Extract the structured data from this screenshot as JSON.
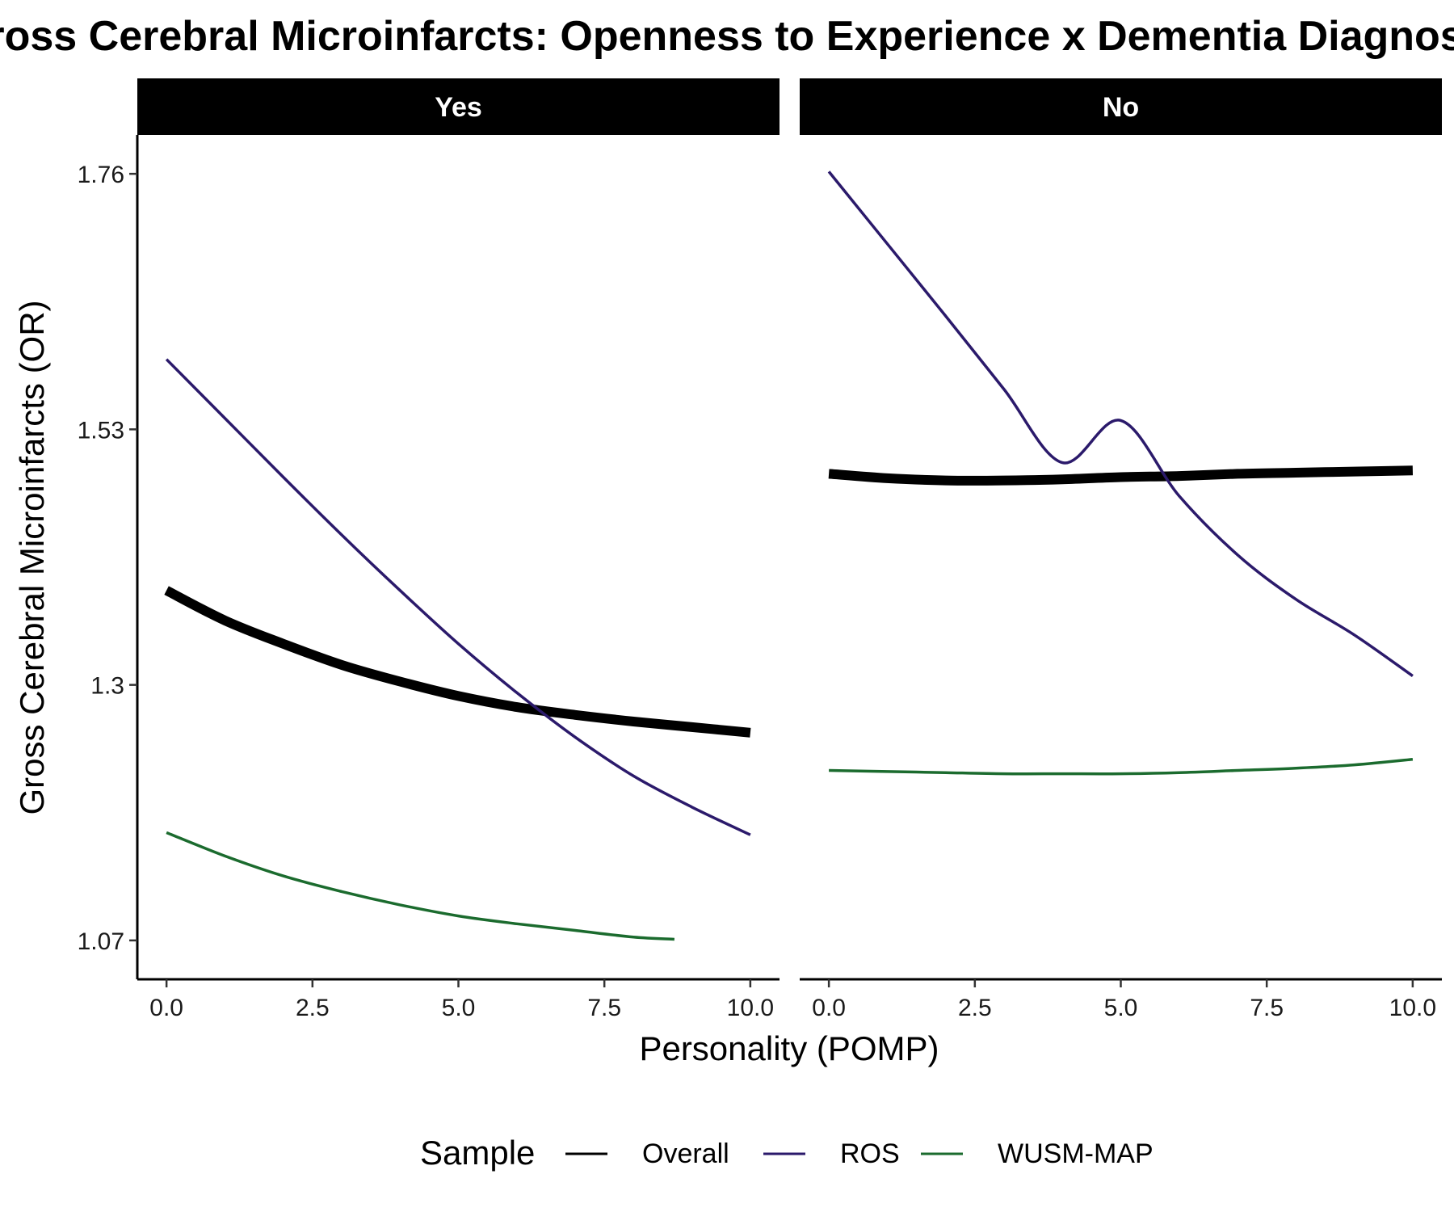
{
  "chart_data": {
    "type": "line",
    "title": "Gross Cerebral Microinfarcts: Openness to Experience x Dementia Diagnosis",
    "xlabel": "Personality (POMP)",
    "ylabel": "Gross Cerebral Microinfarcts (OR)",
    "xlim": [
      -0.5,
      10.5
    ],
    "ylim": [
      1.035,
      1.795
    ],
    "x_ticks": [
      0.0,
      2.5,
      5.0,
      7.5,
      10.0
    ],
    "x_tick_labels": [
      "0.0",
      "2.5",
      "5.0",
      "7.5",
      "10.0"
    ],
    "y_ticks": [
      1.07,
      1.3,
      1.53,
      1.76
    ],
    "y_tick_labels": [
      "1.07",
      "1.3",
      "1.53",
      "1.76"
    ],
    "grid": false,
    "legend": {
      "title": "Sample",
      "position": "bottom",
      "entries": [
        {
          "label": "Overall",
          "color": "#000000",
          "width": 3
        },
        {
          "label": "ROS",
          "color": "#2b1a6b",
          "width": 3
        },
        {
          "label": "WUSM-MAP",
          "color": "#1b6b2e",
          "width": 3
        }
      ]
    },
    "panels": [
      {
        "label": "Yes",
        "series": [
          {
            "name": "Overall",
            "color": "#000000",
            "width": 12,
            "x": [
              0,
              1,
              2,
              3,
              4,
              5,
              6,
              7,
              8,
              9,
              10
            ],
            "y": [
              1.385,
              1.358,
              1.337,
              1.318,
              1.303,
              1.29,
              1.28,
              1.273,
              1.267,
              1.262,
              1.257
            ]
          },
          {
            "name": "ROS",
            "color": "#2b1a6b",
            "width": 3.5,
            "x": [
              0,
              1,
              2,
              3,
              4,
              5,
              6,
              7,
              8,
              9,
              10
            ],
            "y": [
              1.593,
              1.54,
              1.487,
              1.435,
              1.385,
              1.337,
              1.293,
              1.253,
              1.218,
              1.19,
              1.165
            ]
          },
          {
            "name": "WUSM-MAP",
            "color": "#1b6b2e",
            "width": 3.5,
            "x": [
              0,
              1,
              2,
              3,
              4,
              5,
              6,
              7,
              8,
              8.7
            ],
            "y": [
              1.167,
              1.146,
              1.128,
              1.114,
              1.102,
              1.092,
              1.085,
              1.079,
              1.073,
              1.071
            ]
          }
        ]
      },
      {
        "label": "No",
        "series": [
          {
            "name": "Overall",
            "color": "#000000",
            "width": 12,
            "x": [
              0,
              1,
              2,
              3,
              4,
              5,
              6,
              7,
              8,
              9,
              10
            ],
            "y": [
              1.49,
              1.486,
              1.484,
              1.484,
              1.485,
              1.487,
              1.488,
              1.49,
              1.491,
              1.492,
              1.493
            ]
          },
          {
            "name": "ROS",
            "color": "#2b1a6b",
            "width": 3.5,
            "x": [
              0,
              1,
              2,
              3,
              4,
              5,
              6,
              7,
              8,
              9,
              10
            ],
            "y": [
              1.762,
              1.697,
              1.632,
              1.566,
              1.5,
              1.538,
              1.47,
              1.417,
              1.377,
              1.345,
              1.308
            ]
          },
          {
            "name": "WUSM-MAP",
            "color": "#1b6b2e",
            "width": 3.5,
            "x": [
              0,
              1,
              2,
              3,
              4,
              5,
              6,
              7,
              8,
              9,
              10
            ],
            "y": [
              1.223,
              1.222,
              1.221,
              1.22,
              1.22,
              1.22,
              1.221,
              1.223,
              1.225,
              1.228,
              1.233
            ]
          }
        ]
      }
    ]
  }
}
